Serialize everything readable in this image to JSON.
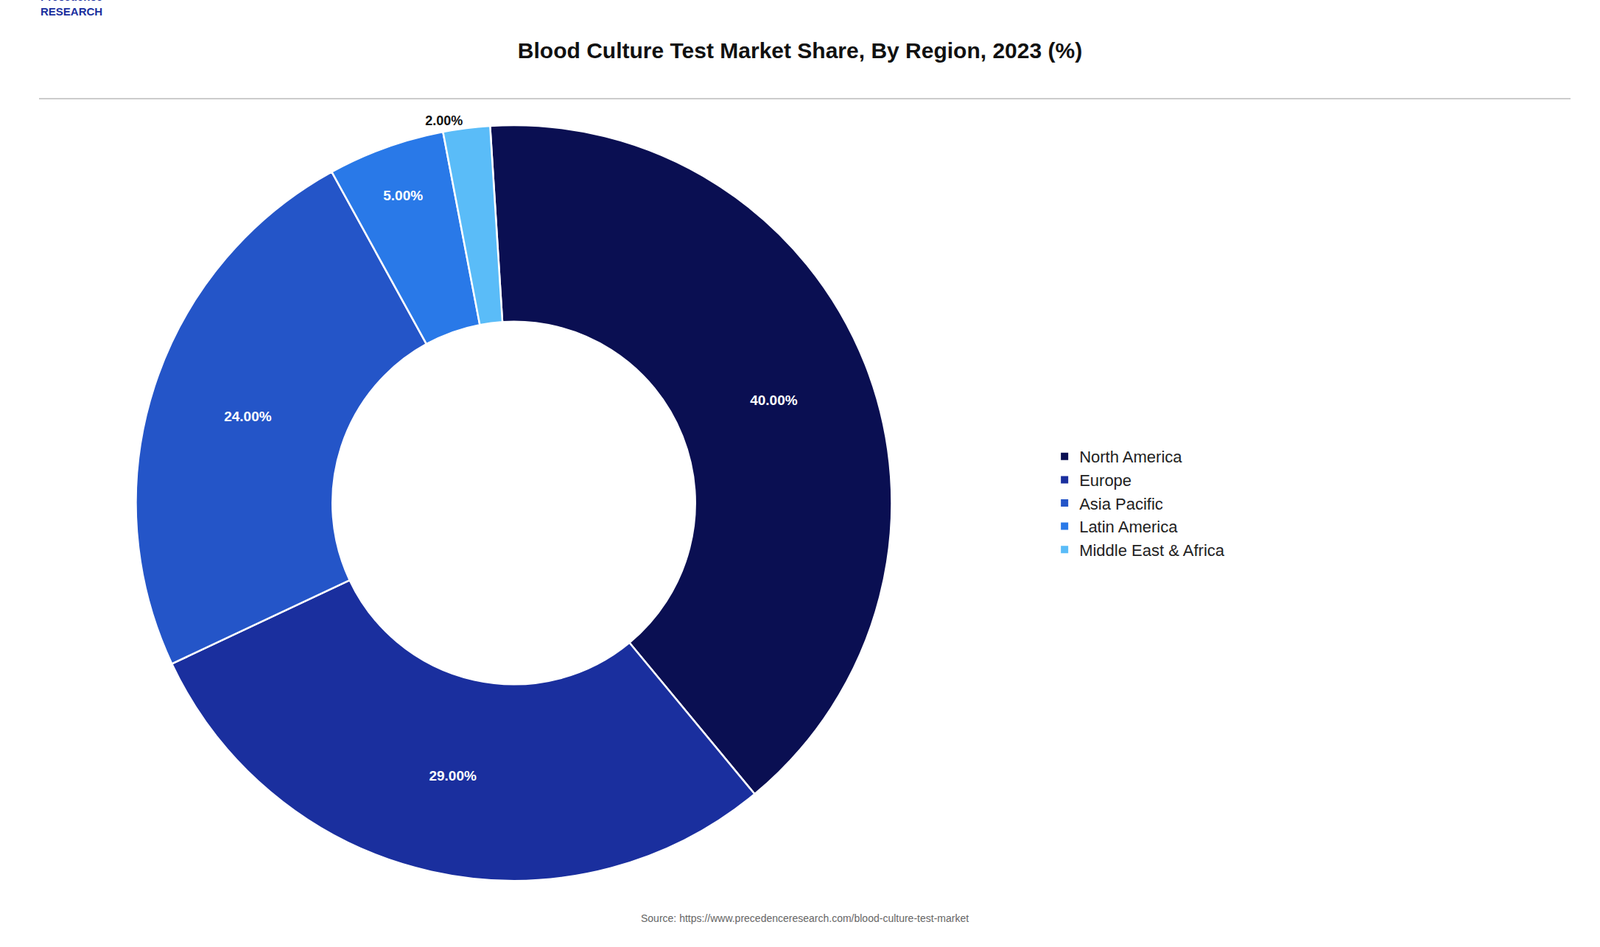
{
  "chart_data": {
    "type": "pie",
    "title": "Blood Culture Test Market Share, By Region, 2023 (%)",
    "categories": [
      "North America",
      "Europe",
      "Asia Pacific",
      "Latin America",
      "Middle East & Africa"
    ],
    "values": [
      40.0,
      29.0,
      24.0,
      5.0,
      2.0
    ],
    "value_labels": [
      "40.00%",
      "29.00%",
      "24.00%",
      "5.00%",
      "2.00%"
    ],
    "colors": [
      "#0a0f52",
      "#1a2f9e",
      "#2455c8",
      "#2979e8",
      "#5abcf8"
    ],
    "data_labels": true,
    "legend": "right",
    "annotations": [
      "Source: https://www.precedenceresearch.com/blood-culture-test-market",
      "Precedence\nRESEARCH"
    ]
  }
}
